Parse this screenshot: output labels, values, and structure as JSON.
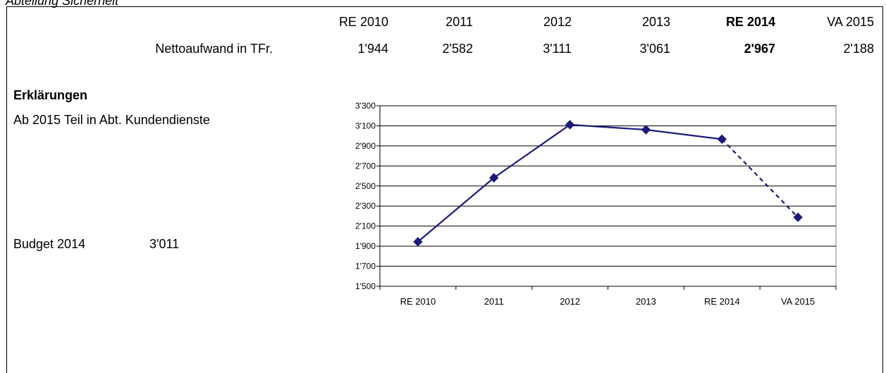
{
  "title": "Abteilung Sicherheit",
  "table": {
    "row_label": "Nettoaufwand in TFr.",
    "columns": [
      {
        "header": "RE 2010",
        "value": "1'944",
        "bold": false
      },
      {
        "header": "2011",
        "value": "2'582",
        "bold": false
      },
      {
        "header": "2012",
        "value": "3'111",
        "bold": false
      },
      {
        "header": "2013",
        "value": "3'061",
        "bold": false
      },
      {
        "header": "RE 2014",
        "value": "2'967",
        "bold": true
      },
      {
        "header": "VA 2015",
        "value": "2'188",
        "bold": false
      }
    ]
  },
  "explanations": {
    "title": "Erklärungen",
    "text": "Ab 2015 Teil in Abt. Kundendienste"
  },
  "budget": {
    "label": "Budget 2014",
    "value": "3'011"
  },
  "chart_data": {
    "type": "line",
    "categories": [
      "RE 2010",
      "2011",
      "2012",
      "2013",
      "RE 2014",
      "VA 2015"
    ],
    "values": [
      1944,
      2582,
      3111,
      3061,
      2967,
      2188
    ],
    "ylim": [
      1500,
      3300
    ],
    "yticks": [
      1500,
      1700,
      1900,
      2100,
      2300,
      2500,
      2700,
      2900,
      3100,
      3300
    ],
    "ytick_labels": [
      "1'500",
      "1'700",
      "1'900",
      "2'100",
      "2'300",
      "2'500",
      "2'700",
      "2'900",
      "3'100",
      "3'300"
    ],
    "grid": true,
    "dashed_last_segment": true,
    "line_color": "#1a1a7a",
    "marker": "diamond"
  }
}
